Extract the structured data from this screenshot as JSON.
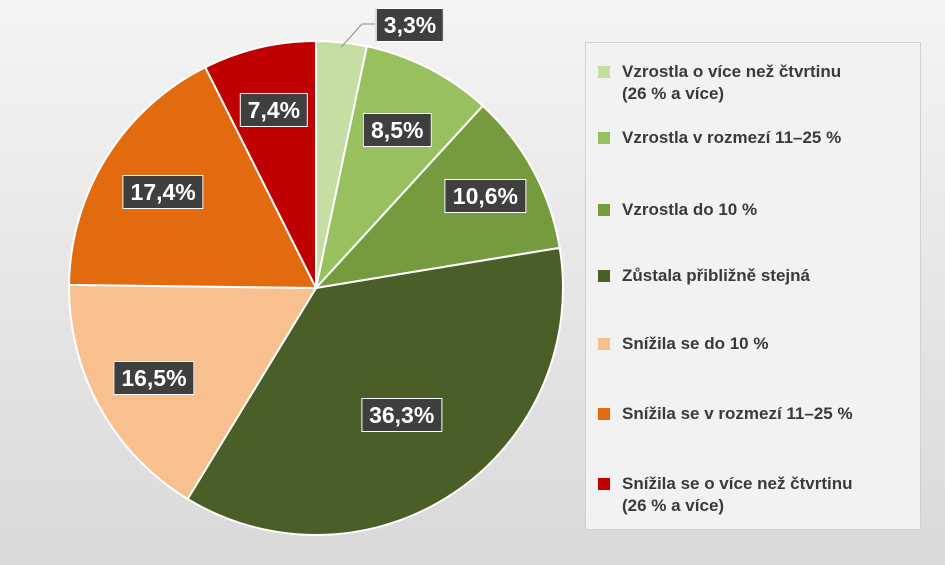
{
  "chart_data": {
    "type": "pie",
    "start": "top",
    "direction": "clockwise",
    "slices": [
      {
        "name": "Vzrostla o více než čtvrtinu\n(26 % a více)",
        "value": 3.3,
        "label": "3,3%",
        "color": "#c4dea4"
      },
      {
        "name": "Vzrostla v rozmezí 11–25 %",
        "value": 8.5,
        "label": "8,5%",
        "color": "#98c05e"
      },
      {
        "name": "Vzrostla do 10 %",
        "value": 10.6,
        "label": "10,6%",
        "color": "#759b3e"
      },
      {
        "name": "Zůstala přibližně stejná",
        "value": 36.3,
        "label": "36,3%",
        "color": "#4a5e28"
      },
      {
        "name": "Snížila se do 10 %",
        "value": 16.5,
        "label": "16,5%",
        "color": "#f8bf8f"
      },
      {
        "name": "Snížila se v rozmezí 11–25 %",
        "value": 17.4,
        "label": "17,4%",
        "color": "#e16b0e"
      },
      {
        "name": "Snížila se o více než čtvrtinu\n(26 % a více)",
        "value": 7.4,
        "label": "7,4%",
        "color": "#c00000"
      }
    ],
    "legend_position": "right"
  }
}
